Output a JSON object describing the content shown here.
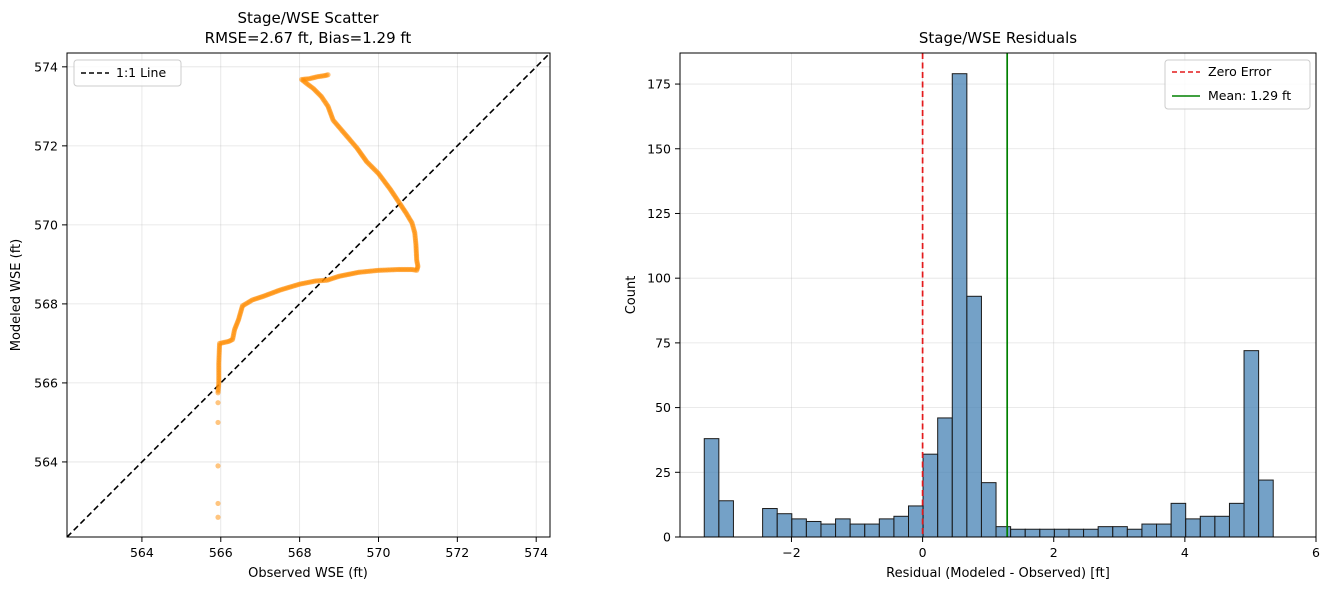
{
  "chart_data": [
    {
      "type": "scatter",
      "title": "Stage/WSE Scatter",
      "subtitle": "RMSE=2.67 ft, Bias=1.29 ft",
      "xlabel": "Observed WSE (ft)",
      "ylabel": "Modeled WSE (ft)",
      "xlim": [
        562.1,
        574.35
      ],
      "ylim": [
        562.1,
        574.35
      ],
      "xticks": [
        564,
        566,
        568,
        570,
        572,
        574
      ],
      "yticks": [
        564,
        566,
        568,
        570,
        572,
        574
      ],
      "tick_labels_x": [
        "564",
        "566",
        "568",
        "570",
        "572",
        "574"
      ],
      "tick_labels_y": [
        "564",
        "566",
        "568",
        "570",
        "572",
        "574"
      ],
      "grid": true,
      "legend_position": "top-left",
      "legend": [
        "1:1 Line"
      ],
      "point_color": "#ff8c00",
      "reference_line": {
        "name": "1:1 Line",
        "color": "#000000",
        "style": "dashed",
        "from": [
          562.1,
          562.1
        ],
        "to": [
          574.35,
          574.35
        ]
      },
      "path_points": [
        [
          565.93,
          562.6
        ],
        [
          565.93,
          562.95
        ],
        [
          565.93,
          563.9
        ],
        [
          565.93,
          565.0
        ],
        [
          565.93,
          565.5
        ],
        [
          565.93,
          565.75
        ],
        [
          565.95,
          566.0
        ],
        [
          565.95,
          566.5
        ],
        [
          565.97,
          567.0
        ],
        [
          566.2,
          567.05
        ],
        [
          566.3,
          567.1
        ],
        [
          566.35,
          567.35
        ],
        [
          566.45,
          567.6
        ],
        [
          566.55,
          567.95
        ],
        [
          566.8,
          568.1
        ],
        [
          567.1,
          568.2
        ],
        [
          567.5,
          568.35
        ],
        [
          568.0,
          568.5
        ],
        [
          568.4,
          568.58
        ],
        [
          568.7,
          568.6
        ],
        [
          569.0,
          568.7
        ],
        [
          569.5,
          568.8
        ],
        [
          570.0,
          568.85
        ],
        [
          570.5,
          568.87
        ],
        [
          570.85,
          568.87
        ],
        [
          570.97,
          568.85
        ],
        [
          571.0,
          568.95
        ],
        [
          570.97,
          569.1
        ],
        [
          570.95,
          569.5
        ],
        [
          570.92,
          569.8
        ],
        [
          570.85,
          570.05
        ],
        [
          570.7,
          570.3
        ],
        [
          570.5,
          570.6
        ],
        [
          570.3,
          570.9
        ],
        [
          570.0,
          571.3
        ],
        [
          569.7,
          571.6
        ],
        [
          569.45,
          571.95
        ],
        [
          569.15,
          572.3
        ],
        [
          568.85,
          572.65
        ],
        [
          568.72,
          573.0
        ],
        [
          568.55,
          573.25
        ],
        [
          568.35,
          573.45
        ],
        [
          568.15,
          573.6
        ],
        [
          568.05,
          573.68
        ],
        [
          568.25,
          573.7
        ],
        [
          568.45,
          573.75
        ],
        [
          568.65,
          573.78
        ],
        [
          568.72,
          573.8
        ]
      ]
    },
    {
      "type": "bar",
      "title": "Stage/WSE Residuals",
      "xlabel": "Residual (Modeled - Observed) [ft]",
      "ylabel": "Count",
      "xlim": [
        -3.7,
        6.0
      ],
      "ylim": [
        0,
        187
      ],
      "xticks": [
        -2,
        0,
        2,
        4,
        6
      ],
      "yticks": [
        0,
        25,
        50,
        75,
        100,
        125,
        150,
        175
      ],
      "tick_labels_x": [
        "−2",
        "0",
        "2",
        "4",
        "6"
      ],
      "tick_labels_y": [
        "0",
        "25",
        "50",
        "75",
        "100",
        "125",
        "150",
        "175"
      ],
      "grid": true,
      "legend_position": "top-right",
      "legend": [
        "Zero Error",
        "Mean: 1.29 ft"
      ],
      "bar_color": "#4682b4",
      "bin_start": -3.33,
      "bin_width": 0.2225,
      "counts": [
        38,
        14,
        0,
        0,
        11,
        9,
        7,
        6,
        5,
        7,
        5,
        5,
        7,
        8,
        12,
        32,
        46,
        179,
        93,
        21,
        4,
        3,
        3,
        3,
        3,
        3,
        3,
        4,
        4,
        3,
        5,
        5,
        13,
        7,
        8,
        8,
        13,
        72,
        22
      ],
      "vlines": [
        {
          "name": "Zero Error",
          "x": 0,
          "color": "#e41a1c",
          "style": "dashed"
        },
        {
          "name": "Mean: 1.29 ft",
          "x": 1.29,
          "color": "#008000",
          "style": "solid"
        }
      ]
    }
  ]
}
